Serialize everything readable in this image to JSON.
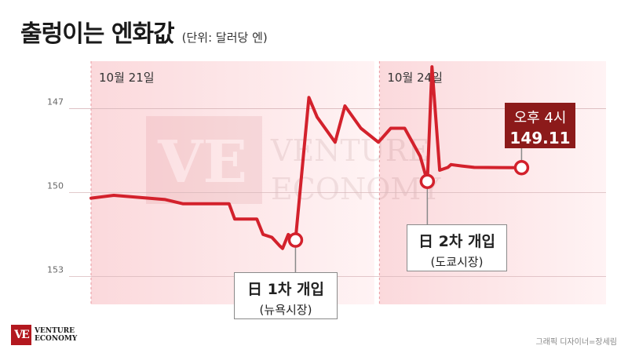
{
  "header": {
    "title": "출렁이는 엔화값",
    "unit": "(단위: 달러당 엔)"
  },
  "chart_data": {
    "type": "line",
    "ylim": [
      154,
      145.3
    ],
    "y_inverted": true,
    "y_ticks": [
      147,
      150,
      153
    ],
    "x_range": [
      0,
      100
    ],
    "shaded_periods": [
      {
        "label": "10월 21일",
        "start": 0,
        "end": 55
      },
      {
        "label": "10월 24일",
        "start": 56,
        "end": 100
      }
    ],
    "series": [
      {
        "color": "#d3212c",
        "x": [
          0,
          4.4,
          14.4,
          17.8,
          26.8,
          27.9,
          32.2,
          33.4,
          35.1,
          36.6,
          37.2,
          38.3,
          39.7,
          42.3,
          43.9,
          47.4,
          49.3,
          52.4,
          55.8,
          58.2,
          60.9,
          63.9,
          65.3,
          66.2,
          67.7,
          69.3,
          69.9,
          72,
          74.4,
          83.6
        ],
        "y": [
          150.2,
          150.1,
          150.25,
          150.4,
          150.4,
          150.95,
          150.95,
          151.5,
          151.6,
          151.9,
          152.0,
          151.5,
          151.7,
          146.6,
          147.3,
          148.2,
          146.9,
          147.7,
          148.2,
          147.7,
          147.7,
          148.7,
          149.6,
          145.5,
          149.2,
          149.1,
          149.0,
          149.05,
          149.1,
          149.11
        ]
      }
    ],
    "markers": [
      {
        "x": 39.7,
        "y": 151.7,
        "label": "日 1차 개입",
        "sublabel": "(뉴욕시장)"
      },
      {
        "x": 65.3,
        "y": 149.6,
        "label": "日 2차 개입",
        "sublabel": "(도쿄시장)"
      },
      {
        "x": 83.6,
        "y": 149.11,
        "label": "오후 4시",
        "value": "149.11"
      }
    ]
  },
  "logo": {
    "line1": "VENTURE",
    "line2": "ECONOMY"
  },
  "watermark": {
    "line1": "VENTURE",
    "line2": "ECONOMY",
    "mark": "VE"
  },
  "credit": "그래픽 디자이너=장세림",
  "colors": {
    "line": "#d3212c",
    "shade": "#fde9ea",
    "accent": "#8c1a1a"
  }
}
